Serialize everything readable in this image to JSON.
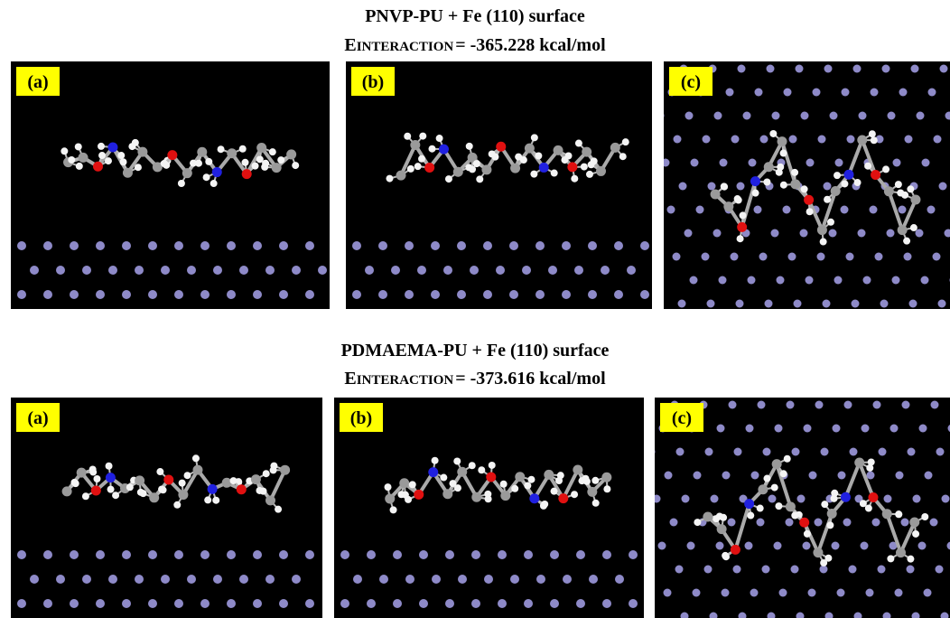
{
  "sections": [
    {
      "title": "PNVP-PU + Fe (110) surface",
      "energy": {
        "symbol": "E",
        "subscript": "INTERACTION",
        "value": "= -365.228 kcal/mol"
      },
      "panels": [
        {
          "label": "(a)"
        },
        {
          "label": "(b)"
        },
        {
          "label": "(c)"
        }
      ]
    },
    {
      "title": "PDMAEMA-PU + Fe (110) surface",
      "energy": {
        "symbol": "E",
        "subscript": "INTERACTION",
        "value": "= -373.616 kcal/mol"
      },
      "panels": [
        {
          "label": "(a)"
        },
        {
          "label": "(b)"
        },
        {
          "label": "(c)"
        }
      ]
    }
  ]
}
